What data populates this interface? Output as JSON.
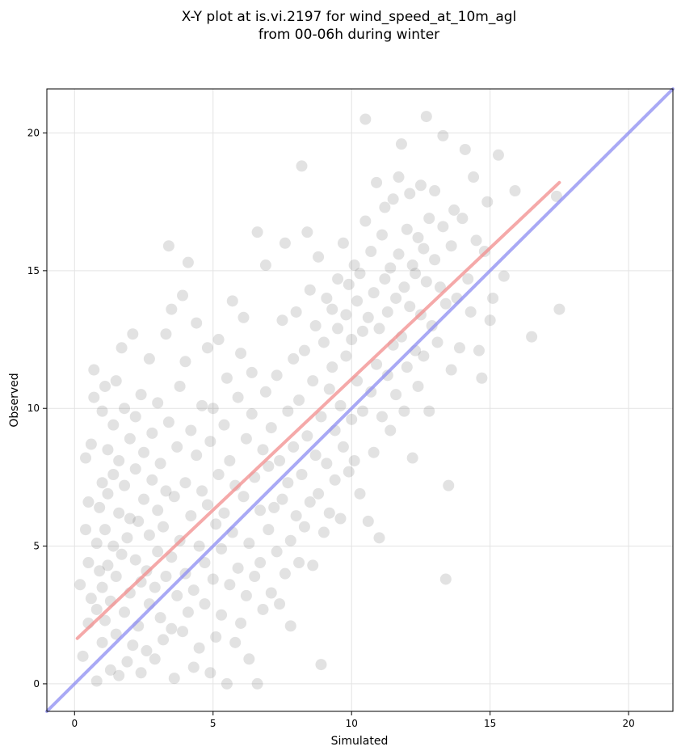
{
  "chart_data": {
    "type": "scatter",
    "title": [
      "X-Y plot at is.vi.2197 for wind_speed_at_10m_agl",
      "from 00-06h during winter"
    ],
    "xlabel": "Simulated",
    "ylabel": "Observed",
    "xlim": [
      -1.0,
      21.6
    ],
    "ylim": [
      -1.0,
      21.6
    ],
    "xticks": [
      0,
      5,
      10,
      15,
      20
    ],
    "yticks": [
      0,
      5,
      10,
      15,
      20
    ],
    "grid": true,
    "point_color": "#555555",
    "series": [
      {
        "kind": "points",
        "points": [
          [
            0.2,
            3.6
          ],
          [
            0.3,
            1.0
          ],
          [
            0.4,
            5.6
          ],
          [
            0.4,
            8.2
          ],
          [
            0.5,
            2.2
          ],
          [
            0.5,
            4.4
          ],
          [
            0.5,
            6.6
          ],
          [
            0.6,
            3.1
          ],
          [
            0.6,
            8.7
          ],
          [
            0.7,
            11.4
          ],
          [
            0.7,
            10.4
          ],
          [
            0.8,
            5.1
          ],
          [
            0.8,
            2.7
          ],
          [
            0.8,
            0.1
          ],
          [
            0.9,
            6.4
          ],
          [
            0.9,
            4.1
          ],
          [
            1.0,
            9.9
          ],
          [
            1.0,
            7.3
          ],
          [
            1.0,
            3.5
          ],
          [
            1.0,
            1.5
          ],
          [
            1.1,
            10.8
          ],
          [
            1.1,
            5.6
          ],
          [
            1.1,
            2.3
          ],
          [
            1.2,
            8.5
          ],
          [
            1.2,
            6.9
          ],
          [
            1.2,
            4.3
          ],
          [
            1.3,
            0.5
          ],
          [
            1.3,
            3.0
          ],
          [
            1.4,
            7.6
          ],
          [
            1.4,
            5.0
          ],
          [
            1.4,
            9.4
          ],
          [
            1.5,
            11.0
          ],
          [
            1.5,
            1.8
          ],
          [
            1.5,
            3.9
          ],
          [
            1.6,
            6.2
          ],
          [
            1.6,
            8.1
          ],
          [
            1.6,
            0.3
          ],
          [
            1.7,
            12.2
          ],
          [
            1.7,
            4.7
          ],
          [
            1.8,
            2.6
          ],
          [
            1.8,
            7.2
          ],
          [
            1.8,
            10.0
          ],
          [
            1.9,
            5.3
          ],
          [
            1.9,
            0.8
          ],
          [
            2.0,
            3.3
          ],
          [
            2.0,
            8.9
          ],
          [
            2.0,
            6.0
          ],
          [
            2.1,
            12.7
          ],
          [
            2.1,
            1.4
          ],
          [
            2.2,
            4.5
          ],
          [
            2.2,
            7.8
          ],
          [
            2.2,
            9.7
          ],
          [
            2.3,
            2.1
          ],
          [
            2.3,
            5.9
          ],
          [
            2.4,
            3.7
          ],
          [
            2.4,
            10.5
          ],
          [
            2.4,
            0.4
          ],
          [
            2.5,
            6.7
          ],
          [
            2.5,
            8.4
          ],
          [
            2.6,
            4.1
          ],
          [
            2.6,
            1.2
          ],
          [
            2.7,
            11.8
          ],
          [
            2.7,
            5.4
          ],
          [
            2.7,
            2.9
          ],
          [
            2.8,
            7.4
          ],
          [
            2.8,
            9.1
          ],
          [
            2.9,
            3.5
          ],
          [
            2.9,
            0.9
          ],
          [
            3.0,
            6.3
          ],
          [
            3.0,
            4.8
          ],
          [
            3.0,
            10.2
          ],
          [
            3.1,
            2.4
          ],
          [
            3.1,
            8.0
          ],
          [
            3.2,
            5.7
          ],
          [
            3.2,
            1.6
          ],
          [
            3.3,
            12.7
          ],
          [
            3.3,
            3.9
          ],
          [
            3.3,
            7.0
          ],
          [
            3.4,
            15.9
          ],
          [
            3.4,
            9.5
          ],
          [
            3.5,
            4.6
          ],
          [
            3.5,
            2.0
          ],
          [
            3.5,
            13.6
          ],
          [
            3.6,
            6.8
          ],
          [
            3.6,
            0.2
          ],
          [
            3.7,
            8.6
          ],
          [
            3.7,
            3.2
          ],
          [
            3.8,
            5.2
          ],
          [
            3.8,
            10.8
          ],
          [
            3.9,
            14.1
          ],
          [
            3.9,
            1.9
          ],
          [
            4.0,
            7.3
          ],
          [
            4.0,
            4.0
          ],
          [
            4.0,
            11.7
          ],
          [
            4.1,
            15.3
          ],
          [
            4.1,
            2.6
          ],
          [
            4.2,
            6.1
          ],
          [
            4.2,
            9.2
          ],
          [
            4.3,
            3.4
          ],
          [
            4.3,
            0.6
          ],
          [
            4.4,
            13.1
          ],
          [
            4.4,
            8.3
          ],
          [
            4.5,
            5.0
          ],
          [
            4.5,
            1.3
          ],
          [
            4.6,
            10.1
          ],
          [
            4.6,
            7.0
          ],
          [
            4.7,
            2.9
          ],
          [
            4.7,
            4.4
          ],
          [
            4.8,
            12.2
          ],
          [
            4.8,
            6.5
          ],
          [
            4.9,
            8.8
          ],
          [
            4.9,
            0.4
          ],
          [
            5.0,
            3.8
          ],
          [
            5.0,
            10.0
          ],
          [
            5.1,
            5.8
          ],
          [
            5.1,
            1.7
          ],
          [
            5.2,
            7.6
          ],
          [
            5.2,
            12.5
          ],
          [
            5.3,
            2.5
          ],
          [
            5.3,
            4.9
          ],
          [
            5.4,
            9.4
          ],
          [
            5.4,
            6.2
          ],
          [
            5.5,
            11.1
          ],
          [
            5.5,
            0.0
          ],
          [
            5.6,
            3.6
          ],
          [
            5.6,
            8.1
          ],
          [
            5.7,
            13.9
          ],
          [
            5.7,
            5.5
          ],
          [
            5.8,
            1.5
          ],
          [
            5.8,
            7.2
          ],
          [
            5.9,
            4.2
          ],
          [
            5.9,
            10.4
          ],
          [
            6.0,
            2.2
          ],
          [
            6.0,
            12.0
          ],
          [
            6.1,
            6.8
          ],
          [
            6.1,
            13.3
          ],
          [
            6.2,
            8.9
          ],
          [
            6.2,
            3.2
          ],
          [
            6.3,
            0.9
          ],
          [
            6.3,
            5.1
          ],
          [
            6.4,
            9.8
          ],
          [
            6.4,
            11.3
          ],
          [
            6.5,
            7.5
          ],
          [
            6.5,
            3.9
          ],
          [
            6.6,
            16.4
          ],
          [
            6.6,
            0.0
          ],
          [
            6.7,
            6.3
          ],
          [
            6.7,
            4.4
          ],
          [
            6.8,
            8.5
          ],
          [
            6.8,
            2.7
          ],
          [
            6.9,
            15.2
          ],
          [
            6.9,
            10.6
          ],
          [
            7.0,
            5.6
          ],
          [
            7.0,
            7.9
          ],
          [
            7.1,
            3.3
          ],
          [
            7.1,
            9.3
          ],
          [
            7.2,
            6.4
          ],
          [
            7.3,
            4.8
          ],
          [
            7.3,
            11.2
          ],
          [
            7.4,
            8.1
          ],
          [
            7.4,
            2.9
          ],
          [
            7.5,
            13.2
          ],
          [
            7.5,
            6.7
          ],
          [
            7.6,
            16.0
          ],
          [
            7.6,
            4.0
          ],
          [
            7.7,
            9.9
          ],
          [
            7.7,
            7.3
          ],
          [
            7.8,
            5.2
          ],
          [
            7.8,
            2.1
          ],
          [
            7.9,
            11.8
          ],
          [
            7.9,
            8.6
          ],
          [
            8.0,
            6.1
          ],
          [
            8.0,
            13.5
          ],
          [
            8.1,
            4.4
          ],
          [
            8.1,
            10.3
          ],
          [
            8.2,
            18.8
          ],
          [
            8.2,
            7.6
          ],
          [
            8.3,
            5.7
          ],
          [
            8.3,
            12.1
          ],
          [
            8.4,
            9.0
          ],
          [
            8.4,
            16.4
          ],
          [
            8.5,
            6.6
          ],
          [
            8.5,
            14.3
          ],
          [
            8.6,
            4.3
          ],
          [
            8.6,
            11.0
          ],
          [
            8.7,
            8.3
          ],
          [
            8.7,
            13.0
          ],
          [
            8.8,
            6.9
          ],
          [
            8.8,
            15.5
          ],
          [
            8.9,
            9.7
          ],
          [
            8.9,
            0.7
          ],
          [
            9.0,
            12.4
          ],
          [
            9.0,
            5.5
          ],
          [
            9.1,
            8.0
          ],
          [
            9.1,
            14.0
          ],
          [
            9.2,
            10.7
          ],
          [
            9.2,
            6.2
          ],
          [
            9.3,
            13.6
          ],
          [
            9.3,
            11.5
          ],
          [
            9.4,
            7.4
          ],
          [
            9.4,
            9.2
          ],
          [
            9.5,
            14.7
          ],
          [
            9.5,
            12.9
          ],
          [
            9.6,
            6.0
          ],
          [
            9.6,
            10.1
          ],
          [
            9.7,
            16.0
          ],
          [
            9.7,
            8.6
          ],
          [
            9.8,
            13.4
          ],
          [
            9.8,
            11.9
          ],
          [
            9.9,
            7.7
          ],
          [
            9.9,
            14.5
          ],
          [
            10.0,
            9.6
          ],
          [
            10.0,
            12.5
          ],
          [
            10.1,
            15.2
          ],
          [
            10.1,
            8.1
          ],
          [
            10.2,
            13.9
          ],
          [
            10.2,
            11.0
          ],
          [
            10.3,
            6.9
          ],
          [
            10.3,
            14.9
          ],
          [
            10.4,
            9.9
          ],
          [
            10.4,
            12.8
          ],
          [
            10.5,
            16.8
          ],
          [
            10.5,
            20.5
          ],
          [
            10.6,
            5.9
          ],
          [
            10.6,
            13.3
          ],
          [
            10.7,
            10.6
          ],
          [
            10.7,
            15.7
          ],
          [
            10.8,
            8.4
          ],
          [
            10.8,
            14.2
          ],
          [
            10.9,
            11.6
          ],
          [
            10.9,
            18.2
          ],
          [
            11.0,
            5.3
          ],
          [
            11.0,
            12.9
          ],
          [
            11.1,
            16.3
          ],
          [
            11.1,
            9.7
          ],
          [
            11.2,
            14.7
          ],
          [
            11.2,
            17.3
          ],
          [
            11.3,
            11.2
          ],
          [
            11.3,
            13.5
          ],
          [
            11.4,
            15.1
          ],
          [
            11.4,
            9.2
          ],
          [
            11.5,
            12.3
          ],
          [
            11.5,
            17.6
          ],
          [
            11.6,
            14.0
          ],
          [
            11.6,
            10.5
          ],
          [
            11.7,
            18.4
          ],
          [
            11.7,
            15.6
          ],
          [
            11.8,
            12.6
          ],
          [
            11.8,
            19.6
          ],
          [
            11.9,
            9.9
          ],
          [
            11.9,
            14.4
          ],
          [
            12.0,
            16.5
          ],
          [
            12.0,
            11.5
          ],
          [
            12.1,
            13.7
          ],
          [
            12.1,
            17.8
          ],
          [
            12.2,
            8.2
          ],
          [
            12.2,
            15.2
          ],
          [
            12.3,
            12.1
          ],
          [
            12.3,
            14.9
          ],
          [
            12.4,
            16.2
          ],
          [
            12.4,
            10.8
          ],
          [
            12.5,
            13.4
          ],
          [
            12.5,
            18.1
          ],
          [
            12.6,
            15.8
          ],
          [
            12.6,
            11.9
          ],
          [
            12.7,
            20.6
          ],
          [
            12.7,
            14.6
          ],
          [
            12.8,
            9.9
          ],
          [
            12.8,
            16.9
          ],
          [
            12.9,
            13.0
          ],
          [
            13.0,
            17.9
          ],
          [
            13.0,
            15.4
          ],
          [
            13.1,
            12.4
          ],
          [
            13.2,
            14.4
          ],
          [
            13.3,
            19.9
          ],
          [
            13.3,
            16.6
          ],
          [
            13.4,
            3.8
          ],
          [
            13.4,
            13.8
          ],
          [
            13.5,
            7.2
          ],
          [
            13.6,
            15.9
          ],
          [
            13.6,
            11.4
          ],
          [
            13.7,
            17.2
          ],
          [
            13.8,
            14.0
          ],
          [
            13.9,
            12.2
          ],
          [
            14.0,
            16.9
          ],
          [
            14.1,
            19.4
          ],
          [
            14.2,
            14.7
          ],
          [
            14.3,
            13.5
          ],
          [
            14.4,
            18.4
          ],
          [
            14.5,
            16.1
          ],
          [
            14.6,
            12.1
          ],
          [
            14.7,
            11.1
          ],
          [
            14.8,
            15.7
          ],
          [
            14.9,
            17.5
          ],
          [
            15.0,
            13.2
          ],
          [
            15.1,
            14.0
          ],
          [
            15.3,
            19.2
          ],
          [
            15.5,
            14.8
          ],
          [
            15.9,
            17.9
          ],
          [
            16.5,
            12.6
          ],
          [
            17.4,
            17.7
          ],
          [
            17.5,
            13.6
          ]
        ]
      },
      {
        "kind": "line",
        "name": "",
        "color": "#f28c8c",
        "points": [
          [
            0.1,
            1.65
          ],
          [
            17.5,
            18.2
          ]
        ]
      },
      {
        "kind": "line",
        "name": "",
        "color": "#8c8cf2",
        "points": [
          [
            -1.0,
            -1.0
          ],
          [
            21.6,
            21.6
          ]
        ]
      }
    ]
  }
}
